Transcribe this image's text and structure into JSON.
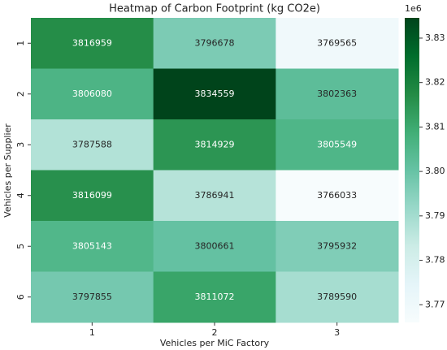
{
  "chart_data": {
    "type": "heatmap",
    "title": "Heatmap of Carbon Footprint (kg CO2e)",
    "xlabel": "Vehicles per MiC Factory",
    "ylabel": "Vehicles per Supplier",
    "x": [
      "1",
      "2",
      "3"
    ],
    "y": [
      "1",
      "2",
      "3",
      "4",
      "5",
      "6"
    ],
    "values": [
      [
        3816959,
        3796678,
        3769565
      ],
      [
        3806080,
        3834559,
        3802363
      ],
      [
        3787588,
        3814929,
        3805549
      ],
      [
        3816099,
        3786941,
        3766033
      ],
      [
        3805143,
        3800661,
        3795932
      ],
      [
        3797855,
        3811072,
        3789590
      ]
    ],
    "colormap": "BuGn",
    "clim": [
      3766033,
      3834559
    ],
    "cticks": [
      {
        "value": 3770000,
        "label": "3.77"
      },
      {
        "value": 3780000,
        "label": "3.78"
      },
      {
        "value": 3790000,
        "label": "3.79"
      },
      {
        "value": 3800000,
        "label": "3.80"
      },
      {
        "value": 3810000,
        "label": "3.81"
      },
      {
        "value": 3820000,
        "label": "3.82"
      },
      {
        "value": 3830000,
        "label": "3.83"
      }
    ],
    "colorbar_offset": "1e6"
  }
}
